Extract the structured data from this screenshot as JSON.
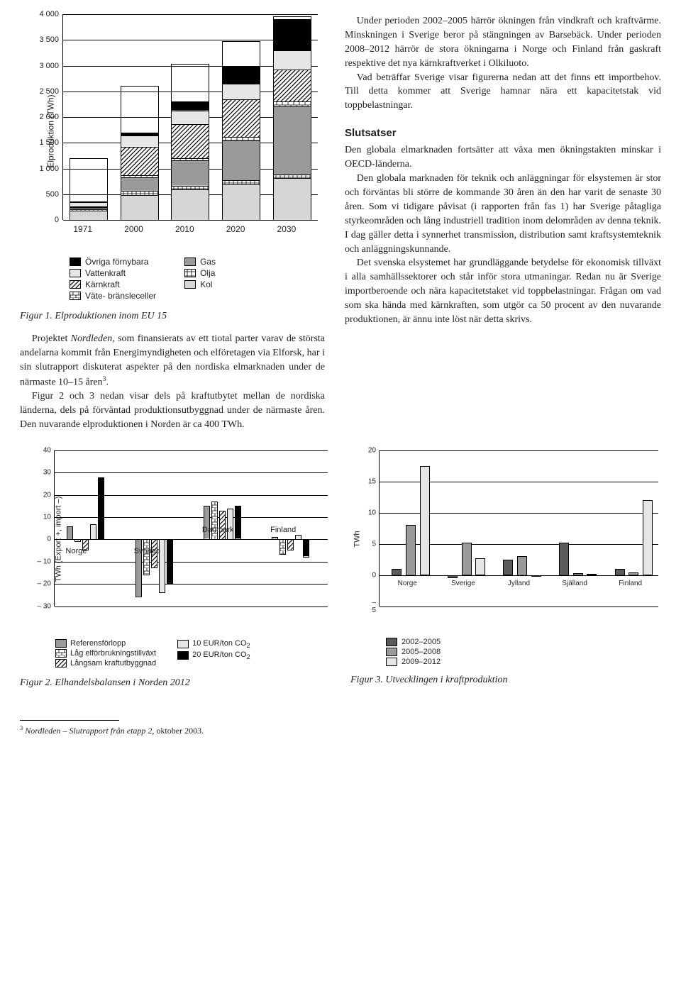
{
  "figure1": {
    "type": "stacked-bar",
    "ylabel": "Elproduktion (TWh)",
    "categories": [
      "1971",
      "2000",
      "2010",
      "2020",
      "2030"
    ],
    "ymax": 4000,
    "ymin": 0,
    "ystep": 500,
    "yticks": [
      "0",
      "500",
      "1 000",
      "1 500",
      "2 000",
      "2 500",
      "3 000",
      "3 500",
      "4 000"
    ],
    "series_order": [
      "kol",
      "olja",
      "gas",
      "vate",
      "karnkraft",
      "vattenkraft",
      "ovriga"
    ],
    "bars": {
      "1971": {
        "kol": 600,
        "olja": 120,
        "gas": 60,
        "vate": 60,
        "karnkraft": 60,
        "vattenkraft": 270,
        "ovriga": 30
      },
      "2000": {
        "kol": 750,
        "olja": 130,
        "gas": 400,
        "vate": 60,
        "karnkraft": 850,
        "vattenkraft": 330,
        "ovriga": 90
      },
      "2010": {
        "kol": 780,
        "olja": 100,
        "gas": 650,
        "vate": 60,
        "karnkraft": 880,
        "vattenkraft": 340,
        "ovriga": 230
      },
      "2020": {
        "kol": 800,
        "olja": 90,
        "gas": 900,
        "vate": 80,
        "karnkraft": 850,
        "vattenkraft": 350,
        "ovriga": 400
      },
      "2030": {
        "kol": 820,
        "olja": 70,
        "gas": 1350,
        "vate": 100,
        "karnkraft": 630,
        "vattenkraft": 370,
        "ovriga": 620
      }
    },
    "legend_left": [
      {
        "key": "ovriga",
        "label": "Övriga förnybara",
        "fill": "#000000"
      },
      {
        "key": "vattenkraft",
        "label": "Vattenkraft",
        "fill": "#e6e6e6"
      },
      {
        "key": "karnkraft",
        "label": "Kärnkraft",
        "fill": "url(#p-diag)"
      },
      {
        "key": "vate",
        "label": "Väte- bränsleceller",
        "fill": "url(#p-brick)"
      }
    ],
    "legend_right": [
      {
        "key": "gas",
        "label": "Gas",
        "fill": "#9a9a9a"
      },
      {
        "key": "olja",
        "label": "Olja",
        "fill": "url(#p-cross)"
      },
      {
        "key": "kol",
        "label": "Kol",
        "fill": "#d6d6d6"
      }
    ],
    "caption": "Figur 1. Elproduktionen inom EU 15"
  },
  "body_left": {
    "p1a": "Projektet ",
    "p1a_i": "Nordleden,",
    "p1b": " som finansierats av ett tiotal parter varav de största andelarna kommit från Energimyndigheten och elföretagen via Elforsk, har i sin slutrapport diskuterat aspekter på den nordiska elmarknaden under de närmaste 10–15 åren",
    "p1sup": "3",
    "p1c": ".",
    "p2": "Figur 2 och 3 nedan visar dels på kraftutbytet mellan de nordiska länderna, dels på förväntad produktionsutbyggnad under de närmaste åren. Den nuvarande elproduktionen i Norden är ca 400 TWh."
  },
  "body_right": {
    "p1": "Under perioden 2002–2005 härrör ökningen från vindkraft och kraftvärme. Minskningen i Sverige beror på stängningen av Barsebäck. Under perioden 2008–2012 härrör de stora ökningarna i Norge och Finland från gaskraft respektive det nya kärnkraftverket i Olkiluoto.",
    "p2": "Vad beträffar Sverige visar figurerna nedan att det finns ett importbehov. Till detta kommer att Sverige hamnar nära ett kapacitetstak vid toppbelastningar.",
    "heading": "Slutsatser",
    "p3": "Den globala elmarknaden fortsätter att växa men ökningstakten minskar i OECD-länderna.",
    "p4": "Den globala marknaden för teknik och anläggningar för elsystemen är stor och förväntas bli större de kommande 30 åren än den har varit de senaste 30 åren. Som vi tidigare påvisat (i rapporten från fas 1) har Sverige påtagliga styrkeområden och lång industriell tradition inom delområden av denna teknik. I dag gäller detta i synnerhet transmission, distribution samt kraftsystemteknik och anläggningskunnande.",
    "p5": "Det svenska elsystemet har grundläggande betydelse för ekonomisk tillväxt i alla samhällssektorer och står inför stora utmaningar. Redan nu är Sverige importberoende och nära kapacitetstaket vid toppbelastningar. Frågan om vad som ska hända med kärnkraften, som utgör ca 50 procent av den nuvarande produktionen, är ännu inte löst när detta skrivs."
  },
  "figure2": {
    "type": "grouped-bar",
    "ylabel": "TWh (Export +, import –)",
    "ymin": -30,
    "ymax": 40,
    "ystep": 10,
    "yticks": [
      "– 30",
      "– 20",
      "– 10",
      "0",
      "10",
      "20",
      "30",
      "40"
    ],
    "countries": [
      "Norge",
      "Sverige",
      "Danmark",
      "Finland"
    ],
    "series": [
      {
        "key": "ref",
        "label": "Referensförlopp",
        "fill": "#9a9a9a"
      },
      {
        "key": "lag",
        "label": "Låg elförbrukningstillväxt",
        "fill": "url(#p-brick)"
      },
      {
        "key": "lang",
        "label": "Långsam kraftutbyggnad",
        "fill": "url(#p-diag)"
      },
      {
        "key": "eur10",
        "label": "10 EUR/ton CO",
        "sub": "2",
        "fill": "#e6e6e6"
      },
      {
        "key": "eur20",
        "label": "20 EUR/ton CO",
        "sub": "2",
        "fill": "#000000"
      }
    ],
    "data": {
      "Norge": {
        "ref": 6,
        "lag": -1,
        "lang": -5,
        "eur10": 7,
        "eur20": 28
      },
      "Sverige": {
        "ref": -26,
        "lag": -16,
        "lang": -13,
        "eur10": -24,
        "eur20": -20
      },
      "Danmark": {
        "ref": 15,
        "lag": 17,
        "lang": 13,
        "eur10": 14,
        "eur20": 15
      },
      "Finland": {
        "ref": 1,
        "lag": -7,
        "lang": -5,
        "eur10": 2,
        "eur20": -8
      }
    },
    "caption": "Figur 2. Elhandelsbalansen i Norden 2012"
  },
  "figure3": {
    "type": "grouped-bar",
    "ylabel": "TWh",
    "ymin": -5,
    "ymax": 20,
    "ystep": 5,
    "yticks": [
      "– 5",
      "0",
      "5",
      "10",
      "15",
      "20"
    ],
    "regions": [
      "Norge",
      "Sverige",
      "Jylland",
      "Själland",
      "Finland"
    ],
    "series": [
      {
        "key": "a",
        "label": "2002–2005",
        "fill": "#5b5b5b"
      },
      {
        "key": "b",
        "label": "2005–2008",
        "fill": "#9a9a9a"
      },
      {
        "key": "c",
        "label": "2009–2012",
        "fill": "#e6e6e6"
      }
    ],
    "data": {
      "Norge": {
        "a": 1,
        "b": 8,
        "c": 17.5
      },
      "Sverige": {
        "a": -0.5,
        "b": 5.2,
        "c": 2.7
      },
      "Jylland": {
        "a": 2.5,
        "b": 3,
        "c": -0.2
      },
      "Själland": {
        "a": 5.2,
        "b": 0.3,
        "c": 0.2
      },
      "Finland": {
        "a": 1,
        "b": 0.4,
        "c": 12
      }
    },
    "caption": "Figur 3. Utvecklingen i kraftproduktion"
  },
  "footnote": {
    "num": "3",
    "title": "Nordleden – Slutrapport från etapp 2",
    "tail": ", oktober 2003."
  },
  "fills": {
    "kol": "#d6d6d6",
    "olja": "url(#p-cross)",
    "gas": "#9a9a9a",
    "vate": "url(#p-brick)",
    "karnkraft": "url(#p-diag)",
    "vattenkraft": "#e6e6e6",
    "ovriga": "#000000"
  }
}
